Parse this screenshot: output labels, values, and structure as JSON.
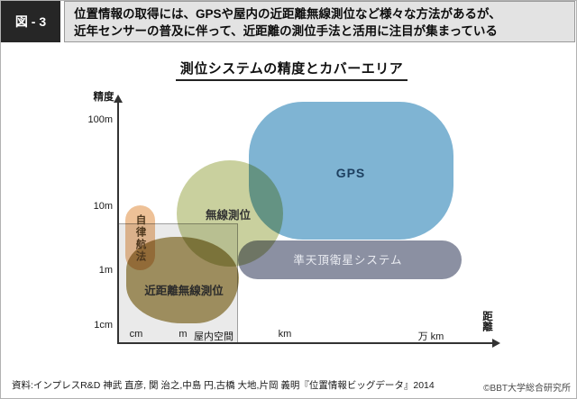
{
  "figure_label": "図 - 3",
  "header": {
    "line1": "位置情報の取得には、GPSや屋内の近距離無線測位など様々な方法があるが、",
    "line2": "近年センサーの普及に伴って、近距離の測位手法と活用に注目が集まっている"
  },
  "footer": {
    "source": "資料:インプレスR&D 神武 直彦, 関 治之,中島 円,古橋 大地,片岡 義明『位置情報ビッグデータ』2014",
    "copyright": "©BBT大学総合研究所"
  },
  "chart_data": {
    "type": "bubble",
    "title": "測位システムの精度とカバーエリア",
    "x_axis": {
      "title": "距離",
      "ticks": [
        "cm",
        "m",
        "km",
        "万 km"
      ],
      "indoor_area_label": "屋内空間"
    },
    "y_axis": {
      "title": "精度",
      "ticks": [
        "100m",
        "10m",
        "1m",
        "1cm"
      ]
    },
    "legend_position": "none",
    "grid": false,
    "series": [
      {
        "name": "GPS",
        "color": "#7fb4d3",
        "text_color": "#1d3f5f",
        "distance_range": [
          "km",
          "万km"
        ],
        "accuracy_range": [
          "1m",
          "100m"
        ]
      },
      {
        "name": "無線測位",
        "color": "#c9d09e",
        "text_color": "#333333",
        "distance_range": [
          "m",
          "km"
        ],
        "accuracy_range": [
          "1m",
          "30m"
        ]
      },
      {
        "name": "自律航法",
        "color": "#eec197",
        "text_color": "#4e381e",
        "distance_range": [
          "cm",
          "cm"
        ],
        "accuracy_range": [
          "1m",
          "8m"
        ]
      },
      {
        "name": "近距離無線測位",
        "color": "#ab9a66",
        "text_color": "#2b2b2b",
        "distance_range": [
          "cm",
          "m"
        ],
        "accuracy_range": [
          "1cm",
          "1m"
        ]
      },
      {
        "name": "準天頂衛星システム",
        "color": "#8b90a2",
        "text_color": "#e9ebf1",
        "distance_range": [
          "km",
          "万km"
        ],
        "accuracy_range": [
          "1m",
          "2m"
        ]
      }
    ]
  }
}
